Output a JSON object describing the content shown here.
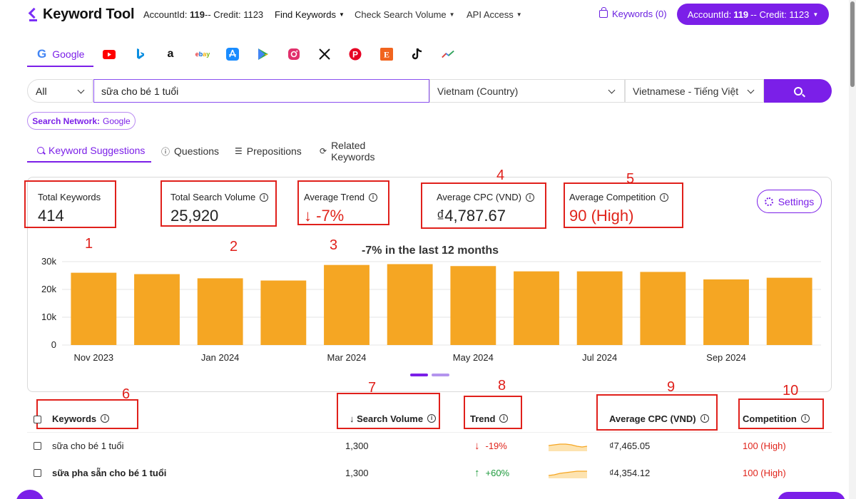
{
  "app": {
    "title": "Keyword Tool"
  },
  "nav": {
    "account_prefix": "AccountId: ",
    "account_id": "119",
    "account_credit_text": "-- Credit: 1123",
    "find_keywords": "Find Keywords",
    "check_search_volume": "Check Search Volume",
    "api_access": "API Access",
    "keywords_cart": "Keywords (0)",
    "account_btn_prefix": "AccountId:",
    "account_btn_id": "119",
    "account_btn_suffix": "-- Credit: 1123"
  },
  "platforms": {
    "active": "Google",
    "icons": [
      "google-icon",
      "youtube-icon",
      "bing-icon",
      "amazon-icon",
      "ebay-icon",
      "app-store-icon",
      "play-store-icon",
      "instagram-icon",
      "x-icon",
      "pinterest-icon",
      "etsy-icon",
      "tiktok-icon",
      "trends-icon"
    ],
    "colors": {
      "accent": "#7b1fe8",
      "youtube": "#ff0000",
      "bing": "#0a8ee0",
      "amazon": "#111111",
      "pinterest": "#e60023",
      "etsy": "#f1641e"
    }
  },
  "search": {
    "type": "All",
    "query": "sữa cho bé 1 tuổi",
    "country": "Vietnam (Country)",
    "language": "Vietnamese - Tiếng Việt"
  },
  "network": {
    "label": "Search Network:",
    "value": "Google"
  },
  "subtabs": [
    "Keyword Suggestions",
    "Questions",
    "Prepositions",
    "Related Keywords"
  ],
  "stats": {
    "total_keywords": {
      "label": "Total Keywords",
      "value": "414"
    },
    "total_search_volume": {
      "label": "Total Search Volume",
      "value": "25,920"
    },
    "average_trend": {
      "label": "Average Trend",
      "value": "↓ -7%"
    },
    "average_cpc": {
      "label": "Average CPC (VND)",
      "value": "₫4,787.67"
    },
    "average_competition": {
      "label": "Average Competition",
      "value": "90 (High)"
    },
    "settings_label": "Settings"
  },
  "annotations": [
    "1",
    "2",
    "3",
    "4",
    "5",
    "6",
    "7",
    "8",
    "9",
    "10"
  ],
  "chart_data": {
    "type": "bar",
    "title": "-7% in the last 12 months",
    "categories": [
      "Nov 2023",
      "Dec 2023",
      "Jan 2024",
      "Feb 2024",
      "Mar 2024",
      "Apr 2024",
      "May 2024",
      "Jun 2024",
      "Jul 2024",
      "Aug 2024",
      "Sep 2024",
      "Oct 2024"
    ],
    "x_tick_labels": [
      "Nov 2023",
      "",
      "Jan 2024",
      "",
      "Mar 2024",
      "",
      "May 2024",
      "",
      "Jul 2024",
      "",
      "Sep 2024",
      ""
    ],
    "values": [
      26000,
      25500,
      24000,
      23200,
      28800,
      29100,
      28400,
      26500,
      26500,
      26300,
      23600,
      24200
    ],
    "y_ticks": [
      0,
      10000,
      20000,
      30000
    ],
    "y_tick_labels": [
      "0",
      "10k",
      "20k",
      "30k"
    ],
    "ylim": [
      0,
      30000
    ],
    "bar_color": "#f5a623",
    "grid": "horizontal"
  },
  "table": {
    "headers": {
      "keywords": "Keywords",
      "search_volume": "↓ Search Volume",
      "trend": "Trend",
      "average_cpc": "Average CPC (VND)",
      "competition": "Competition"
    },
    "rows": [
      {
        "keyword": "sữa cho bé 1 tuổi",
        "bold": false,
        "volume": "1,300",
        "trend": "-19%",
        "trend_dir": "down",
        "cpc": "₫7,465.05",
        "competition": "100 (High)"
      },
      {
        "keyword": "sữa pha sẵn cho bé 1 tuổi",
        "bold": true,
        "volume": "1,300",
        "trend": "+60%",
        "trend_dir": "up",
        "cpc": "₫4,354.12",
        "competition": "100 (High)"
      }
    ]
  }
}
